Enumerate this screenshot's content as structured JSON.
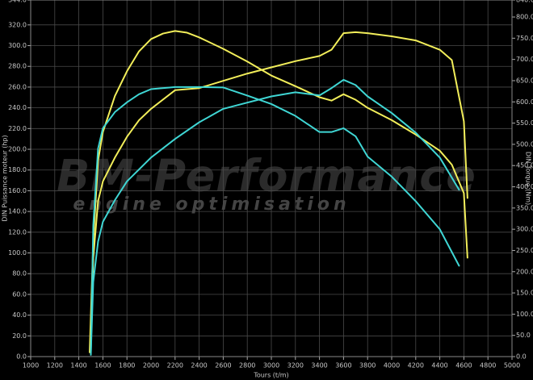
{
  "chart_data": {
    "type": "line",
    "xlabel": "Tours (t/m)",
    "ylabel": "DIN Puissance moteur (hp)",
    "y2label": "DIN Torque (Nm)",
    "watermark": [
      "BM-Performance",
      "engine optimisation"
    ],
    "grid": true,
    "xlim": [
      1000,
      5000
    ],
    "xticks": [
      1000,
      1200,
      1400,
      1600,
      1800,
      2000,
      2200,
      2400,
      2600,
      2800,
      3000,
      3200,
      3400,
      3600,
      3800,
      4000,
      4200,
      4400,
      4600,
      4800,
      5000
    ],
    "ylim": [
      0,
      344
    ],
    "yticks": [
      {
        "value": 0,
        "label": "0.0"
      },
      {
        "value": 20,
        "label": "20.0"
      },
      {
        "value": 40,
        "label": "40.0"
      },
      {
        "value": 60,
        "label": "60.0"
      },
      {
        "value": 80,
        "label": "80.0"
      },
      {
        "value": 100,
        "label": "100.0"
      },
      {
        "value": 120,
        "label": "120.0"
      },
      {
        "value": 140,
        "label": "140.0"
      },
      {
        "value": 160,
        "label": "160.0"
      },
      {
        "value": 180,
        "label": "180.0"
      },
      {
        "value": 200,
        "label": "200.0"
      },
      {
        "value": 220,
        "label": "220.0"
      },
      {
        "value": 240,
        "label": "240.0"
      },
      {
        "value": 260,
        "label": "260.0"
      },
      {
        "value": 280,
        "label": "280.0"
      },
      {
        "value": 300,
        "label": "300.0"
      },
      {
        "value": 320,
        "label": "320.0"
      },
      {
        "value": 344,
        "label": "344.0"
      }
    ],
    "y2lim": [
      0,
      840
    ],
    "y2ticks": [
      {
        "value": 0,
        "label": "0.0"
      },
      {
        "value": 50,
        "label": "50.0"
      },
      {
        "value": 100,
        "label": "100.0"
      },
      {
        "value": 150,
        "label": "150.0"
      },
      {
        "value": 200,
        "label": "200.0"
      },
      {
        "value": 250,
        "label": "250.0"
      },
      {
        "value": 300,
        "label": "300.0"
      },
      {
        "value": 350,
        "label": "350.0"
      },
      {
        "value": 400,
        "label": "400.0"
      },
      {
        "value": 450,
        "label": "450.0"
      },
      {
        "value": 500,
        "label": "500.0"
      },
      {
        "value": 550,
        "label": "550.0"
      },
      {
        "value": 600,
        "label": "600.0"
      },
      {
        "value": 650,
        "label": "650.0"
      },
      {
        "value": 700,
        "label": "700.0"
      },
      {
        "value": 750,
        "label": "750.0"
      },
      {
        "value": 800,
        "label": "800.0"
      },
      {
        "value": 840,
        "label": "840.0"
      }
    ],
    "series": [
      {
        "color": "#f2ee5a",
        "axis": "y",
        "x": [
          1500,
          1520,
          1560,
          1600,
          1700,
          1800,
          1900,
          2000,
          2200,
          2400,
          2600,
          2800,
          3000,
          3200,
          3400,
          3500,
          3600,
          3700,
          3800,
          4000,
          4200,
          4400,
          4500,
          4600,
          4630
        ],
        "values": [
          8,
          95,
          150,
          169,
          192,
          212,
          228,
          239,
          257,
          259,
          266,
          273,
          279,
          285,
          290,
          296,
          312,
          313,
          312,
          309,
          305,
          296,
          286,
          227,
          153
        ]
      },
      {
        "color": "#f2ee5a",
        "axis": "y2",
        "x": [
          1490,
          1520,
          1560,
          1600,
          1700,
          1800,
          1900,
          2000,
          2100,
          2200,
          2300,
          2400,
          2600,
          2800,
          3000,
          3200,
          3400,
          3500,
          3600,
          3700,
          3800,
          4000,
          4200,
          4400,
          4500,
          4600,
          4630
        ],
        "values": [
          10,
          271,
          462,
          529,
          614,
          672,
          719,
          748,
          761,
          767,
          763,
          752,
          725,
          695,
          662,
          637,
          611,
          603,
          618,
          605,
          586,
          557,
          523,
          485,
          452,
          385,
          233
        ]
      },
      {
        "color": "#3fd6d4",
        "axis": "y",
        "x": [
          1500,
          1520,
          1560,
          1600,
          1700,
          1800,
          2000,
          2200,
          2400,
          2600,
          2800,
          3000,
          3200,
          3400,
          3500,
          3600,
          3700,
          3800,
          4000,
          4200,
          4400,
          4560
        ],
        "values": [
          3,
          72,
          111,
          130,
          151,
          169,
          192,
          210,
          226,
          239,
          245,
          251,
          255,
          252,
          259,
          267,
          262,
          251,
          235,
          216,
          192,
          161
        ]
      },
      {
        "color": "#3fd6d4",
        "axis": "y2",
        "x": [
          1500,
          1520,
          1560,
          1600,
          1700,
          1800,
          1900,
          2000,
          2200,
          2400,
          2600,
          2800,
          3000,
          3200,
          3400,
          3500,
          3600,
          3700,
          3800,
          4000,
          4200,
          4400,
          4560
        ],
        "values": [
          4,
          309,
          490,
          538,
          576,
          599,
          618,
          630,
          635,
          635,
          634,
          615,
          595,
          567,
          529,
          529,
          538,
          519,
          471,
          424,
          366,
          300,
          214
        ]
      }
    ]
  }
}
